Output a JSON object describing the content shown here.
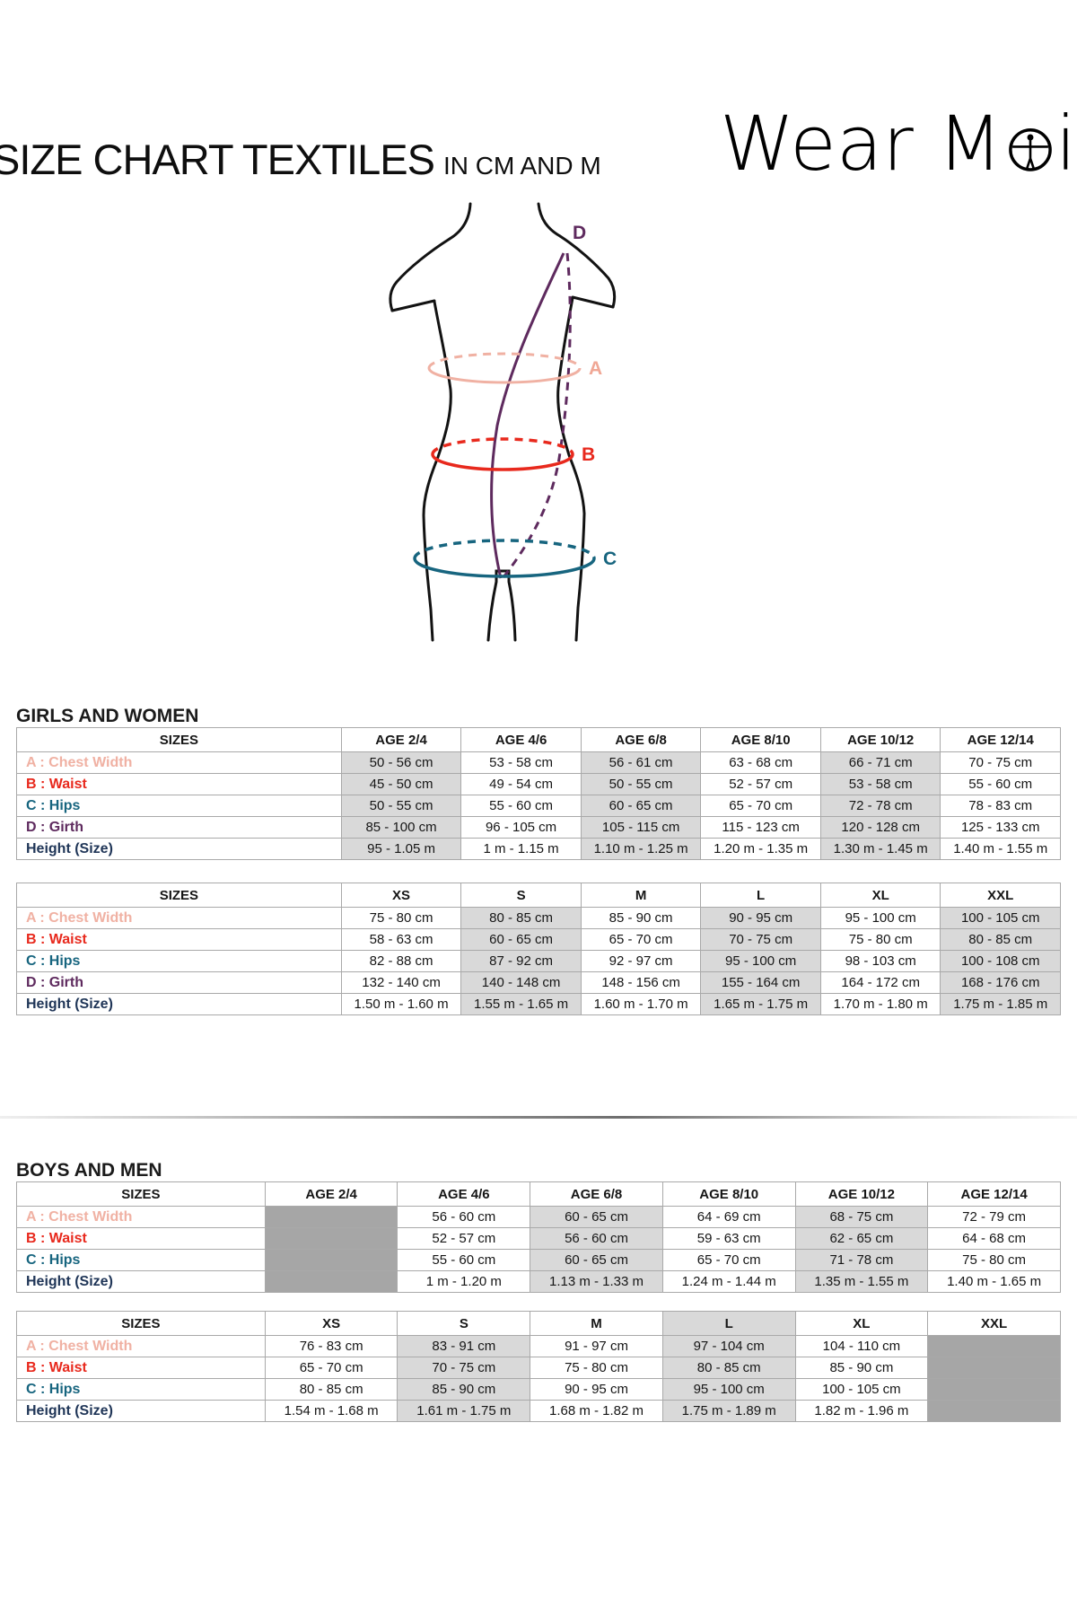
{
  "page": {
    "title": "SIZE CHART TEXTILES",
    "subtitle": "IN CM AND M"
  },
  "logo": {
    "part1": "Wear M",
    "part2": "i",
    "name": "Wear Moi"
  },
  "diagram": {
    "a": "A",
    "b": "B",
    "c": "C",
    "d": "D"
  },
  "colors": {
    "chest": "#f0b1a3",
    "waist": "#e8291d",
    "hips": "#17657f",
    "girth": "#5e2a5e",
    "height": "#1f3557",
    "shade": "#d9d9d9",
    "block": "#a6a6a6"
  },
  "sections": [
    {
      "heading": "GIRLS AND WOMEN",
      "tables": [
        {
          "layout": "wide-label",
          "columns": [
            "SIZES",
            "AGE 2/4",
            "AGE 4/6",
            "AGE 6/8",
            "AGE 8/10",
            "AGE 10/12",
            "AGE 12/14"
          ],
          "shaded_cols": [
            1,
            3,
            5
          ],
          "blocked_cols": [],
          "shaded_header_cols": [],
          "rows": [
            {
              "key": "chest",
              "label": "A : Chest Width",
              "cells": [
                "50 - 56 cm",
                "53 - 58 cm",
                "56 - 61 cm",
                "63 - 68 cm",
                "66 - 71 cm",
                "70 - 75 cm"
              ]
            },
            {
              "key": "waist",
              "label": "B : Waist",
              "cells": [
                "45 - 50 cm",
                "49 - 54 cm",
                "50 - 55 cm",
                "52 - 57 cm",
                "53 - 58 cm",
                "55 - 60 cm"
              ]
            },
            {
              "key": "hips",
              "label": "C : Hips",
              "cells": [
                "50 - 55 cm",
                "55 - 60 cm",
                "60 - 65 cm",
                "65 - 70 cm",
                "72 - 78 cm",
                "78 - 83 cm"
              ]
            },
            {
              "key": "girth",
              "label": "D : Girth",
              "cells": [
                "85 - 100 cm",
                "96 - 105 cm",
                "105 - 115 cm",
                "115 - 123 cm",
                "120 - 128 cm",
                "125 - 133 cm"
              ]
            },
            {
              "key": "height",
              "label": "Height (Size)",
              "cells": [
                "95 - 1.05 m",
                "1 m - 1.15 m",
                "1.10 m - 1.25 m",
                "1.20 m - 1.35 m",
                "1.30 m - 1.45 m",
                "1.40 m - 1.55 m"
              ]
            }
          ]
        },
        {
          "layout": "wide-label",
          "columns": [
            "SIZES",
            "XS",
            "S",
            "M",
            "L",
            "XL",
            "XXL"
          ],
          "shaded_cols": [
            2,
            4,
            6
          ],
          "blocked_cols": [],
          "shaded_header_cols": [],
          "rows": [
            {
              "key": "chest",
              "label": "A : Chest Width",
              "cells": [
                "75 - 80 cm",
                "80 - 85 cm",
                "85 - 90 cm",
                "90 - 95 cm",
                "95 - 100 cm",
                "100 - 105 cm"
              ]
            },
            {
              "key": "waist",
              "label": "B : Waist",
              "cells": [
                "58 - 63 cm",
                "60 - 65 cm",
                "65 - 70 cm",
                "70 - 75 cm",
                "75 - 80 cm",
                "80 - 85 cm"
              ]
            },
            {
              "key": "hips",
              "label": "C : Hips",
              "cells": [
                "82 - 88 cm",
                "87 - 92 cm",
                "92 - 97 cm",
                "95 - 100 cm",
                "98 - 103 cm",
                "100 - 108 cm"
              ]
            },
            {
              "key": "girth",
              "label": "D : Girth",
              "cells": [
                "132 - 140 cm",
                "140 - 148 cm",
                "148 - 156 cm",
                "155 - 164 cm",
                "164 - 172 cm",
                "168 - 176 cm"
              ]
            },
            {
              "key": "height",
              "label": "Height (Size)",
              "cells": [
                "1.50 m - 1.60 m",
                "1.55 m - 1.65 m",
                "1.60 m - 1.70 m",
                "1.65 m - 1.75 m",
                "1.70 m - 1.80 m",
                "1.75 m - 1.85 m"
              ]
            }
          ]
        }
      ]
    },
    {
      "heading": "BOYS AND MEN",
      "tables": [
        {
          "layout": "narrow-label",
          "columns": [
            "SIZES",
            "AGE 2/4",
            "AGE 4/6",
            "AGE 6/8",
            "AGE 8/10",
            "AGE 10/12",
            "AGE 12/14"
          ],
          "shaded_cols": [
            3,
            5
          ],
          "blocked_cols": [
            1
          ],
          "shaded_header_cols": [],
          "rows": [
            {
              "key": "chest",
              "label": "A : Chest Width",
              "cells": [
                "",
                "56 - 60 cm",
                "60 - 65 cm",
                "64 - 69 cm",
                "68 - 75 cm",
                "72 - 79 cm"
              ]
            },
            {
              "key": "waist",
              "label": "B : Waist",
              "cells": [
                "",
                "52 - 57 cm",
                "56 - 60 cm",
                "59 - 63 cm",
                "62 - 65 cm",
                "64 - 68 cm"
              ]
            },
            {
              "key": "hips",
              "label": "C : Hips",
              "cells": [
                "",
                "55 - 60 cm",
                "60 - 65 cm",
                "65 - 70 cm",
                "71 - 78 cm",
                "75 - 80 cm"
              ]
            },
            {
              "key": "height",
              "label": "Height (Size)",
              "cells": [
                "",
                "1 m - 1.20 m",
                "1.13 m - 1.33 m",
                "1.24 m - 1.44 m",
                "1.35 m - 1.55 m",
                "1.40 m - 1.65 m"
              ]
            }
          ]
        },
        {
          "layout": "narrow-label",
          "columns": [
            "SIZES",
            "XS",
            "S",
            "M",
            "L",
            "XL",
            "XXL"
          ],
          "shaded_cols": [
            2,
            4
          ],
          "blocked_cols": [
            6
          ],
          "shaded_header_cols": [
            4
          ],
          "rows": [
            {
              "key": "chest",
              "label": "A : Chest Width",
              "cells": [
                "76 - 83 cm",
                "83 - 91 cm",
                "91 - 97 cm",
                "97 - 104 cm",
                "104 - 110 cm",
                ""
              ]
            },
            {
              "key": "waist",
              "label": "B : Waist",
              "cells": [
                "65 - 70 cm",
                "70 - 75 cm",
                "75 - 80 cm",
                "80 - 85 cm",
                "85 - 90 cm",
                ""
              ]
            },
            {
              "key": "hips",
              "label": "C : Hips",
              "cells": [
                "80 - 85 cm",
                "85 - 90 cm",
                "90 - 95 cm",
                "95 - 100 cm",
                "100 - 105 cm",
                ""
              ]
            },
            {
              "key": "height",
              "label": "Height (Size)",
              "cells": [
                "1.54 m - 1.68 m",
                "1.61 m - 1.75 m",
                "1.68 m - 1.82 m",
                "1.75 m - 1.89 m",
                "1.82 m - 1.96 m",
                ""
              ]
            }
          ]
        }
      ]
    }
  ]
}
